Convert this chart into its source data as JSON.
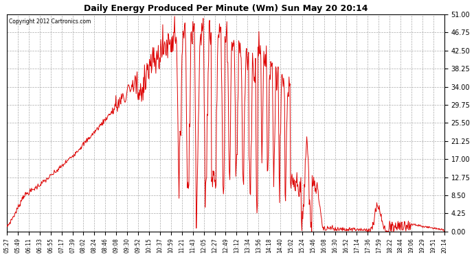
{
  "title": "Daily Energy Produced Per Minute (Wm) Sun May 20 20:14",
  "copyright": "Copyright 2012 Cartronics.com",
  "line_color": "#dd0000",
  "background_color": "#ffffff",
  "grid_color": "#aaaaaa",
  "ylim": [
    0,
    51.0
  ],
  "yticks": [
    0.0,
    4.25,
    8.5,
    12.75,
    17.0,
    21.25,
    25.5,
    29.75,
    34.0,
    38.25,
    42.5,
    46.75,
    51.0
  ],
  "ytick_labels": [
    "0.00",
    "4.25",
    "8.50",
    "12.75",
    "17.00",
    "21.25",
    "25.50",
    "29.75",
    "34.00",
    "38.25",
    "42.50",
    "46.75",
    "51.00"
  ],
  "xtick_labels": [
    "05:27",
    "05:49",
    "06:11",
    "06:33",
    "06:55",
    "07:17",
    "07:39",
    "08:02",
    "08:24",
    "08:46",
    "09:08",
    "09:30",
    "09:52",
    "10:15",
    "10:37",
    "10:59",
    "11:21",
    "11:43",
    "12:05",
    "12:27",
    "12:49",
    "13:12",
    "13:34",
    "13:56",
    "14:18",
    "14:40",
    "15:02",
    "15:24",
    "15:46",
    "16:08",
    "16:30",
    "16:52",
    "17:14",
    "17:36",
    "17:59",
    "18:22",
    "18:44",
    "19:06",
    "19:29",
    "19:51",
    "20:14"
  ]
}
